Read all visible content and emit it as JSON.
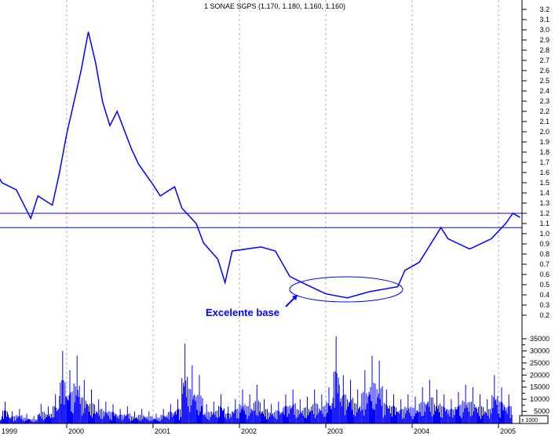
{
  "chart_data": {
    "type": "line",
    "title": "1 SONAE SGPS (1.170, 1.180, 1.160, 1.160)",
    "colors": {
      "price": "#0000ff",
      "volume": "#0000ff",
      "lines": "#0000ff",
      "grid": "#a0b0d0"
    },
    "price_axis": {
      "ylim": [
        0.2,
        3.2
      ],
      "step": 0.1,
      "position": "right"
    },
    "volume_axis": {
      "ylim": [
        0,
        35000
      ],
      "ticks": [
        5000,
        10000,
        15000,
        20000,
        25000,
        30000,
        35000
      ],
      "unit_label": "x 1000"
    },
    "x_ticks": [
      "1999",
      "2000",
      "2001",
      "2002",
      "2003",
      "2004",
      "2005"
    ],
    "xlim": [
      "1999-01",
      "2005-03"
    ],
    "grid": "vertical dashed at year starts",
    "horizontal_lines": [
      1.2,
      1.06
    ],
    "annotation": {
      "text": "Excelente base",
      "ellipse_period": [
        "2002-08",
        "2003-10"
      ],
      "ellipse_price": [
        0.35,
        0.6
      ]
    },
    "price": [
      [
        "1999-03",
        1.62
      ],
      [
        "1999-04",
        1.5
      ],
      [
        "1999-06",
        1.43
      ],
      [
        "1999-08",
        1.15
      ],
      [
        "1999-09",
        1.37
      ],
      [
        "1999-11",
        1.28
      ],
      [
        "1999-12",
        1.6
      ],
      [
        "2000-01",
        1.98
      ],
      [
        "2000-02",
        2.29
      ],
      [
        "2000-03",
        2.6
      ],
      [
        "2000-04",
        2.98
      ],
      [
        "2000-05",
        2.68
      ],
      [
        "2000-06",
        2.29
      ],
      [
        "2000-07",
        2.06
      ],
      [
        "2000-08",
        2.2
      ],
      [
        "2000-10",
        1.83
      ],
      [
        "2000-11",
        1.68
      ],
      [
        "2001-01",
        1.48
      ],
      [
        "2001-02",
        1.37
      ],
      [
        "2001-04",
        1.46
      ],
      [
        "2001-05",
        1.25
      ],
      [
        "2001-07",
        1.1
      ],
      [
        "2001-08",
        0.91
      ],
      [
        "2001-10",
        0.75
      ],
      [
        "2001-11",
        0.52
      ],
      [
        "2001-12",
        0.83
      ],
      [
        "2002-02",
        0.85
      ],
      [
        "2002-04",
        0.87
      ],
      [
        "2002-06",
        0.83
      ],
      [
        "2002-08",
        0.58
      ],
      [
        "2002-10",
        0.51
      ],
      [
        "2003-01",
        0.41
      ],
      [
        "2003-04",
        0.37
      ],
      [
        "2003-07",
        0.43
      ],
      [
        "2003-11",
        0.48
      ],
      [
        "2003-12",
        0.64
      ],
      [
        "2004-02",
        0.72
      ],
      [
        "2004-05",
        1.06
      ],
      [
        "2004-06",
        0.95
      ],
      [
        "2004-09",
        0.85
      ],
      [
        "2004-12",
        0.95
      ],
      [
        "2005-02",
        1.1
      ],
      [
        "2005-03",
        1.2
      ],
      [
        "2005-04",
        1.16
      ]
    ],
    "volume": [
      3,
      9,
      5,
      6,
      4,
      3,
      8,
      7,
      12,
      30,
      22,
      28,
      18,
      14,
      10,
      9,
      8,
      6,
      7,
      5,
      6,
      5,
      4,
      6,
      8,
      10,
      33,
      24,
      20,
      8,
      9,
      12,
      7,
      10,
      14,
      12,
      16,
      10,
      8,
      9,
      12,
      14,
      10,
      11,
      14,
      12,
      15,
      36,
      20,
      18,
      14,
      22,
      28,
      26,
      14,
      12,
      10,
      12,
      11,
      15,
      18,
      14,
      12,
      10,
      13,
      16,
      15,
      12,
      10,
      20,
      15,
      12
    ]
  }
}
